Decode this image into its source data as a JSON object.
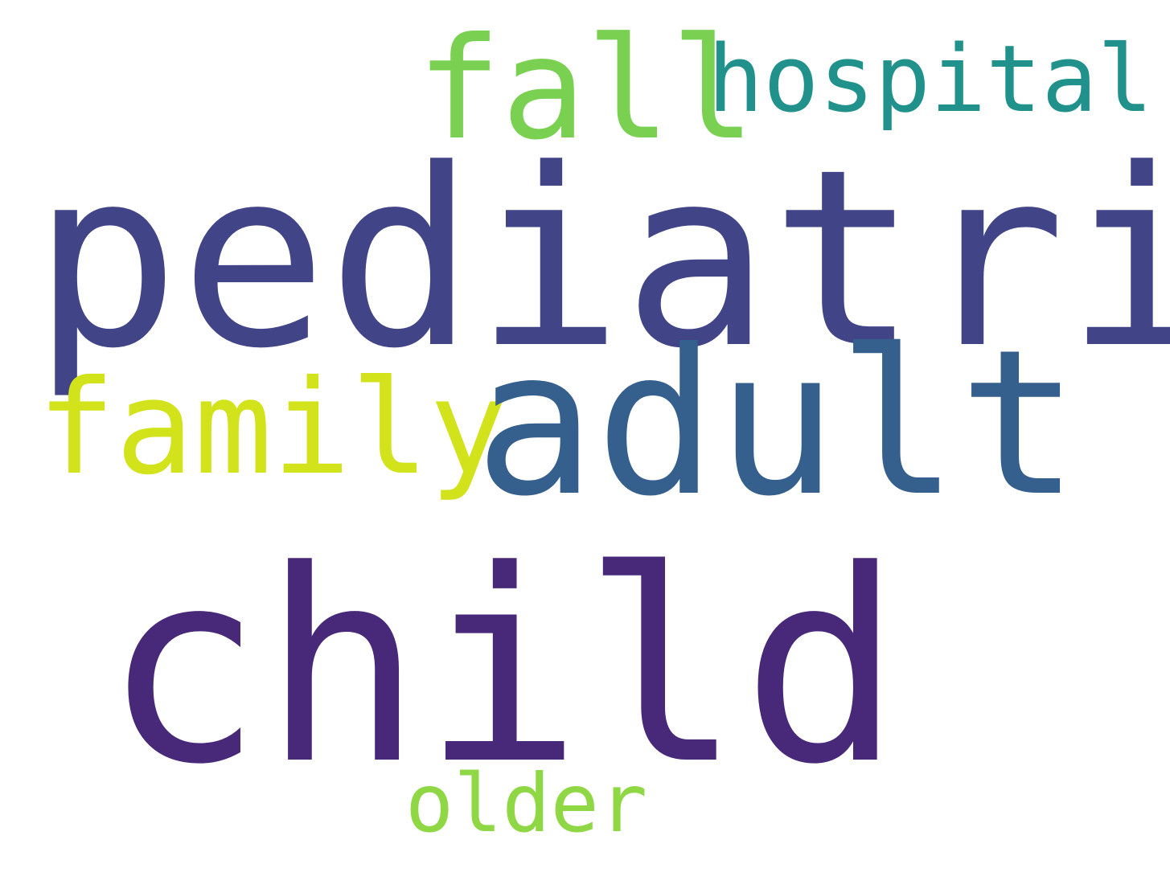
{
  "word_cloud": {
    "background": "#ffffff",
    "words": [
      {
        "id": "fall",
        "text": "fall",
        "color": "#7ad151"
      },
      {
        "id": "hospital",
        "text": "hospital",
        "color": "#21918c"
      },
      {
        "id": "pediatric",
        "text": "pediatric",
        "color": "#414487"
      },
      {
        "id": "family",
        "text": "family",
        "color": "#d2e21b"
      },
      {
        "id": "adult",
        "text": "adult",
        "color": "#355f8d"
      },
      {
        "id": "child",
        "text": "child",
        "color": "#482878"
      },
      {
        "id": "older",
        "text": "older",
        "color": "#8fd744"
      }
    ]
  }
}
